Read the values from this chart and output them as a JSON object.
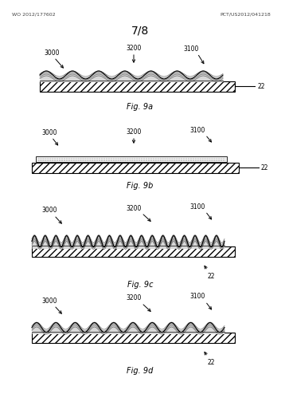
{
  "title": "7/8",
  "header_left": "WO 2012/177602",
  "header_right": "PCT/US2012/041218",
  "background": "#ffffff",
  "fig_width": 3.53,
  "fig_height": 4.99,
  "dpi": 100
}
